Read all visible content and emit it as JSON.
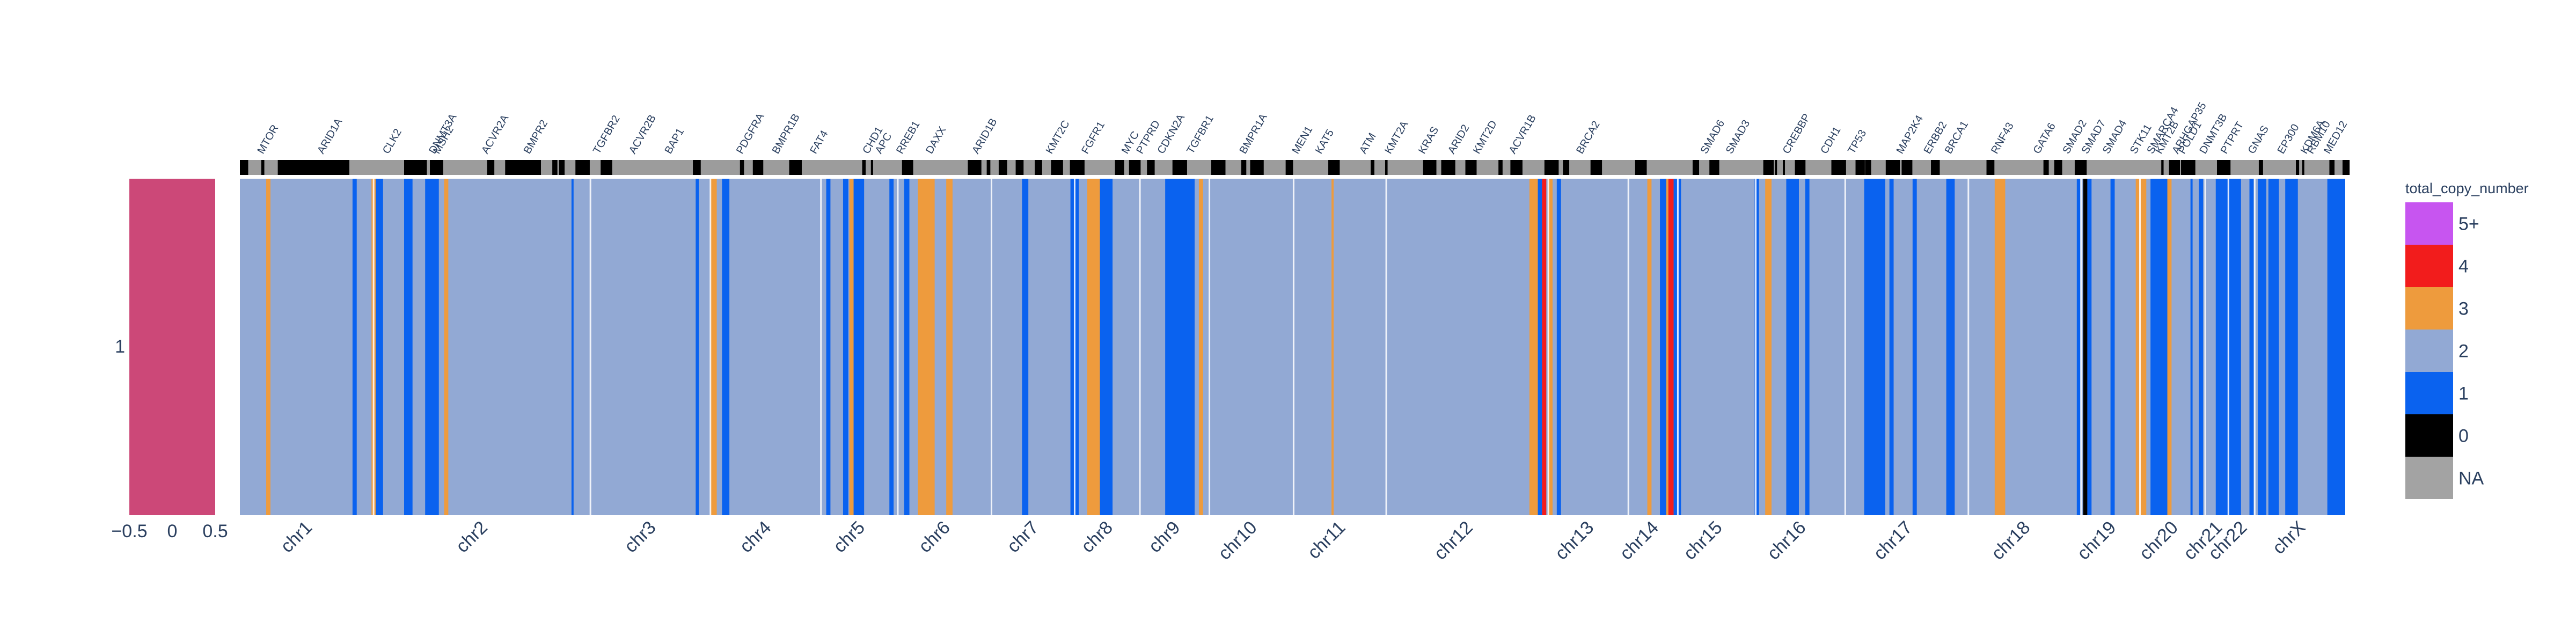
{
  "chart_data": [
    {
      "type": "heatmap",
      "name": "sample-strip",
      "y_categories": [
        "1"
      ],
      "x_ticks": [
        "−0.5",
        "0",
        "0.5"
      ],
      "color": "#cc4878"
    },
    {
      "type": "heatmap",
      "name": "copy-number-track",
      "chromosomes": [
        {
          "label": "chr1",
          "start": 0,
          "end": 0.0635
        },
        {
          "label": "chr2",
          "start": 0.0635,
          "end": 0.1665
        },
        {
          "label": "chr3",
          "start": 0.1665,
          "end": 0.2235
        },
        {
          "label": "chr4",
          "start": 0.2235,
          "end": 0.276
        },
        {
          "label": "chr5",
          "start": 0.276,
          "end": 0.3125
        },
        {
          "label": "chr6",
          "start": 0.3125,
          "end": 0.357
        },
        {
          "label": "chr7",
          "start": 0.357,
          "end": 0.3965
        },
        {
          "label": "chr8",
          "start": 0.3965,
          "end": 0.4275
        },
        {
          "label": "chr9",
          "start": 0.4275,
          "end": 0.4605
        },
        {
          "label": "chr10",
          "start": 0.4605,
          "end": 0.5005
        },
        {
          "label": "chr11",
          "start": 0.5005,
          "end": 0.5445
        },
        {
          "label": "chr12",
          "start": 0.5445,
          "end": 0.6215
        },
        {
          "label": "chr13",
          "start": 0.6215,
          "end": 0.6595
        },
        {
          "label": "chr14",
          "start": 0.6595,
          "end": 0.683
        },
        {
          "label": "chr15",
          "start": 0.683,
          "end": 0.72
        },
        {
          "label": "chr16",
          "start": 0.72,
          "end": 0.7625
        },
        {
          "label": "chr17",
          "start": 0.7625,
          "end": 0.821
        },
        {
          "label": "chr18",
          "start": 0.821,
          "end": 0.8745
        },
        {
          "label": "chr19",
          "start": 0.8745,
          "end": 0.9025
        },
        {
          "label": "chr20",
          "start": 0.9025,
          "end": 0.9335
        },
        {
          "label": "chr21",
          "start": 0.9335,
          "end": 0.9445
        },
        {
          "label": "chr22",
          "start": 0.9445,
          "end": 0.957
        },
        {
          "label": "chrX",
          "start": 0.957,
          "end": 1.0
        }
      ],
      "background_copy_number": "2",
      "segments": [
        {
          "start": 0.0125,
          "end": 0.0145,
          "cn": "3"
        },
        {
          "start": 0.0535,
          "end": 0.0555,
          "cn": "1"
        },
        {
          "start": 0.0625,
          "end": 0.0645,
          "cn": "3"
        },
        {
          "start": 0.0645,
          "end": 0.068,
          "cn": "1"
        },
        {
          "start": 0.078,
          "end": 0.082,
          "cn": "1"
        },
        {
          "start": 0.088,
          "end": 0.0945,
          "cn": "1"
        },
        {
          "start": 0.097,
          "end": 0.099,
          "cn": "3"
        },
        {
          "start": 0.1575,
          "end": 0.1585,
          "cn": "1"
        },
        {
          "start": 0.2165,
          "end": 0.218,
          "cn": "1"
        },
        {
          "start": 0.2235,
          "end": 0.2265,
          "cn": "3"
        },
        {
          "start": 0.229,
          "end": 0.2325,
          "cn": "1"
        },
        {
          "start": 0.2785,
          "end": 0.2805,
          "cn": "1"
        },
        {
          "start": 0.2865,
          "end": 0.289,
          "cn": "1"
        },
        {
          "start": 0.2895,
          "end": 0.2915,
          "cn": "3"
        },
        {
          "start": 0.2915,
          "end": 0.2965,
          "cn": "1"
        },
        {
          "start": 0.3085,
          "end": 0.3105,
          "cn": "1"
        },
        {
          "start": 0.3155,
          "end": 0.318,
          "cn": "1"
        },
        {
          "start": 0.322,
          "end": 0.33,
          "cn": "3"
        },
        {
          "start": 0.3355,
          "end": 0.3385,
          "cn": "3"
        },
        {
          "start": 0.3715,
          "end": 0.3745,
          "cn": "1"
        },
        {
          "start": 0.3945,
          "end": 0.3985,
          "cn": "1"
        },
        {
          "start": 0.3985,
          "end": 0.4025,
          "cn": "2"
        },
        {
          "start": 0.4025,
          "end": 0.4085,
          "cn": "3"
        },
        {
          "start": 0.4085,
          "end": 0.4145,
          "cn": "1"
        },
        {
          "start": 0.4395,
          "end": 0.4535,
          "cn": "1"
        },
        {
          "start": 0.4535,
          "end": 0.4555,
          "cn": "2"
        },
        {
          "start": 0.4555,
          "end": 0.4575,
          "cn": "3"
        },
        {
          "start": 0.5185,
          "end": 0.5195,
          "cn": "3"
        },
        {
          "start": 0.6125,
          "end": 0.6165,
          "cn": "3"
        },
        {
          "start": 0.6165,
          "end": 0.6185,
          "cn": "1"
        },
        {
          "start": 0.6185,
          "end": 0.6205,
          "cn": "4"
        },
        {
          "start": 0.6215,
          "end": 0.6235,
          "cn": "3"
        },
        {
          "start": 0.6255,
          "end": 0.6275,
          "cn": "1"
        },
        {
          "start": 0.6685,
          "end": 0.6705,
          "cn": "3"
        },
        {
          "start": 0.6745,
          "end": 0.6775,
          "cn": "1"
        },
        {
          "start": 0.6775,
          "end": 0.6785,
          "cn": "3"
        },
        {
          "start": 0.6785,
          "end": 0.681,
          "cn": "4"
        },
        {
          "start": 0.681,
          "end": 0.6845,
          "cn": "1"
        },
        {
          "start": 0.7195,
          "end": 0.7215,
          "cn": "1"
        },
        {
          "start": 0.7245,
          "end": 0.7275,
          "cn": "3"
        },
        {
          "start": 0.7275,
          "end": 0.7285,
          "cn": "2"
        },
        {
          "start": 0.7345,
          "end": 0.7405,
          "cn": "1"
        },
        {
          "start": 0.7435,
          "end": 0.7455,
          "cn": "1"
        },
        {
          "start": 0.7715,
          "end": 0.7815,
          "cn": "1"
        },
        {
          "start": 0.7835,
          "end": 0.7855,
          "cn": "1"
        },
        {
          "start": 0.7945,
          "end": 0.7965,
          "cn": "1"
        },
        {
          "start": 0.8105,
          "end": 0.8145,
          "cn": "1"
        },
        {
          "start": 0.8335,
          "end": 0.8385,
          "cn": "3"
        },
        {
          "start": 0.8725,
          "end": 0.8745,
          "cn": "1"
        },
        {
          "start": 0.8755,
          "end": 0.8775,
          "cn": "0"
        },
        {
          "start": 0.8775,
          "end": 0.8795,
          "cn": "1"
        },
        {
          "start": 0.8885,
          "end": 0.8905,
          "cn": "1"
        },
        {
          "start": 0.9005,
          "end": 0.9055,
          "cn": "3"
        },
        {
          "start": 0.9075,
          "end": 0.9155,
          "cn": "1"
        },
        {
          "start": 0.9155,
          "end": 0.9175,
          "cn": "3"
        },
        {
          "start": 0.9265,
          "end": 0.9275,
          "cn": "1"
        },
        {
          "start": 0.9305,
          "end": 0.9325,
          "cn": "1"
        },
        {
          "start": 0.9385,
          "end": 0.9505,
          "cn": "1"
        },
        {
          "start": 0.9545,
          "end": 0.9565,
          "cn": "1"
        },
        {
          "start": 0.9585,
          "end": 0.9625,
          "cn": "1"
        },
        {
          "start": 0.9635,
          "end": 0.9685,
          "cn": "1"
        },
        {
          "start": 0.9715,
          "end": 0.9775,
          "cn": "1"
        },
        {
          "start": 0.9915,
          "end": 1.0,
          "cn": "1"
        }
      ],
      "genes": [
        {
          "label": "MTOR",
          "pos": 0.011
        },
        {
          "label": "ARID1A",
          "pos": 0.0395
        },
        {
          "label": "CLK2",
          "pos": 0.0705
        },
        {
          "label": "DNMT3A",
          "pos": 0.0925
        },
        {
          "label": "MSH2",
          "pos": 0.0945
        },
        {
          "label": "ACVR2A",
          "pos": 0.1175
        },
        {
          "label": "BMPR2",
          "pos": 0.1375
        },
        {
          "label": "TGFBR2",
          "pos": 0.1705
        },
        {
          "label": "ACVR2B",
          "pos": 0.1875
        },
        {
          "label": "BAP1",
          "pos": 0.2045
        },
        {
          "label": "PDGFRA",
          "pos": 0.2385
        },
        {
          "label": "BMPR1B",
          "pos": 0.2555
        },
        {
          "label": "FAT4",
          "pos": 0.2735
        },
        {
          "label": "CHD1",
          "pos": 0.2985
        },
        {
          "label": "APC",
          "pos": 0.3045
        },
        {
          "label": "RREB1",
          "pos": 0.3145
        },
        {
          "label": "DAXX",
          "pos": 0.3285
        },
        {
          "label": "ARID1B",
          "pos": 0.3505
        },
        {
          "label": "KMT2C",
          "pos": 0.3855
        },
        {
          "label": "FGFR1",
          "pos": 0.4025
        },
        {
          "label": "MYC",
          "pos": 0.4215
        },
        {
          "label": "PTPRD",
          "pos": 0.4285
        },
        {
          "label": "CDKN2A",
          "pos": 0.4385
        },
        {
          "label": "TGFBR1",
          "pos": 0.4525
        },
        {
          "label": "BMPR1A",
          "pos": 0.4775
        },
        {
          "label": "MEN1",
          "pos": 0.5025
        },
        {
          "label": "KAT5",
          "pos": 0.5135
        },
        {
          "label": "ATM",
          "pos": 0.5345
        },
        {
          "label": "KMT2A",
          "pos": 0.5465
        },
        {
          "label": "KRAS",
          "pos": 0.5625
        },
        {
          "label": "ARID2",
          "pos": 0.5765
        },
        {
          "label": "KMT2D",
          "pos": 0.5885
        },
        {
          "label": "ACVR1B",
          "pos": 0.6055
        },
        {
          "label": "BRCA2",
          "pos": 0.6375
        },
        {
          "label": "SMAD6",
          "pos": 0.6965
        },
        {
          "label": "SMAD3",
          "pos": 0.7085
        },
        {
          "label": "CREBBP",
          "pos": 0.7355
        },
        {
          "label": "CDH1",
          "pos": 0.7535
        },
        {
          "label": "TP53",
          "pos": 0.7665
        },
        {
          "label": "MAP2K4",
          "pos": 0.7895
        },
        {
          "label": "ERBB2",
          "pos": 0.8025
        },
        {
          "label": "BRCA1",
          "pos": 0.8125
        },
        {
          "label": "RNF43",
          "pos": 0.8345
        },
        {
          "label": "GATA6",
          "pos": 0.8545
        },
        {
          "label": "SMAD2",
          "pos": 0.8685
        },
        {
          "label": "SMAD7",
          "pos": 0.8775
        },
        {
          "label": "SMAD4",
          "pos": 0.8875
        },
        {
          "label": "STK11",
          "pos": 0.9005
        },
        {
          "label": "SMARCA4",
          "pos": 0.9085
        },
        {
          "label": "KMT2B",
          "pos": 0.9125
        },
        {
          "label": "ARHGAP35",
          "pos": 0.9205
        },
        {
          "label": "POLD1",
          "pos": 0.9235
        },
        {
          "label": "DNMT3B",
          "pos": 0.9335
        },
        {
          "label": "PTPRT",
          "pos": 0.9435
        },
        {
          "label": "GNAS",
          "pos": 0.9565
        },
        {
          "label": "EP300",
          "pos": 0.9705
        },
        {
          "label": "KDM6A",
          "pos": 0.9815
        },
        {
          "label": "RBM10",
          "pos": 0.9845
        },
        {
          "label": "MED12",
          "pos": 0.9925
        }
      ]
    }
  ],
  "legend": {
    "title": "total_copy_number",
    "entries": [
      {
        "label": "5+",
        "color": "#c755f0"
      },
      {
        "label": "4",
        "color": "#f21c1c"
      },
      {
        "label": "3",
        "color": "#ee9b3d"
      },
      {
        "label": "2",
        "color": "#92a9d4"
      },
      {
        "label": "1",
        "color": "#0a62ef"
      },
      {
        "label": "0",
        "color": "#000000"
      },
      {
        "label": "NA",
        "color": "#a3a3a3"
      }
    ]
  }
}
